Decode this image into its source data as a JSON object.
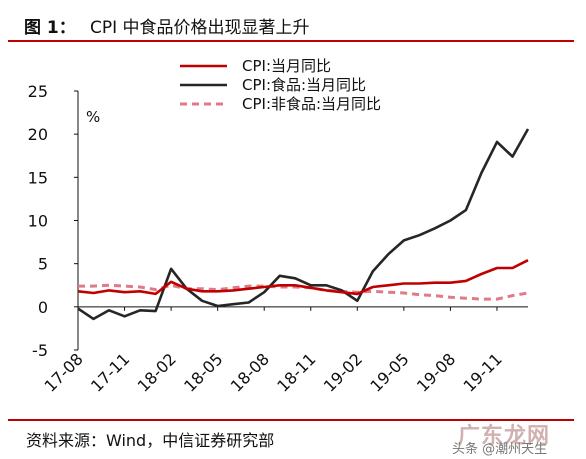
{
  "figure": {
    "number": "图 1：",
    "title": "CPI 中食品价格出现显著上升",
    "source": "资料来源：Wind，中信证券研究部"
  },
  "watermark": {
    "main": "广东龙网",
    "sub": "头条 @潮州天生"
  },
  "colors": {
    "accent_rule": "#c00000",
    "cpi": "#c00000",
    "food": "#262626",
    "nonfood": "#e07a86"
  },
  "chart_data": {
    "type": "line",
    "unit_label": "%",
    "ylim": [
      -5,
      25
    ],
    "yticks": [
      -5,
      0,
      5,
      10,
      15,
      20,
      25
    ],
    "x": [
      "17-08",
      "17-09",
      "17-10",
      "17-11",
      "17-12",
      "18-01",
      "18-02",
      "18-03",
      "18-04",
      "18-05",
      "18-06",
      "18-07",
      "18-08",
      "18-09",
      "18-10",
      "18-11",
      "18-12",
      "19-01",
      "19-02",
      "19-03",
      "19-04",
      "19-05",
      "19-06",
      "19-07",
      "19-08",
      "19-09",
      "19-10",
      "19-11",
      "19-12",
      "20-01"
    ],
    "xtick_labels": [
      "17-08",
      "17-11",
      "18-02",
      "18-05",
      "18-08",
      "18-11",
      "19-02",
      "19-05",
      "19-08",
      "19-11"
    ],
    "legend_position": "top-center",
    "grid": false,
    "series": [
      {
        "name": "CPI:当月同比",
        "color": "#c00000",
        "dash": "solid",
        "values": [
          1.8,
          1.6,
          1.9,
          1.7,
          1.8,
          1.5,
          2.9,
          2.1,
          1.8,
          1.8,
          1.9,
          2.1,
          2.3,
          2.5,
          2.5,
          2.2,
          1.9,
          1.7,
          1.5,
          2.3,
          2.5,
          2.7,
          2.7,
          2.8,
          2.8,
          3.0,
          3.8,
          4.5,
          4.5,
          5.4
        ]
      },
      {
        "name": "CPI:食品:当月同比",
        "color": "#262626",
        "dash": "solid",
        "values": [
          -0.2,
          -1.4,
          -0.4,
          -1.1,
          -0.4,
          -0.5,
          4.4,
          2.1,
          0.7,
          0.1,
          0.3,
          0.5,
          1.7,
          3.6,
          3.3,
          2.5,
          2.5,
          1.9,
          0.7,
          4.1,
          6.1,
          7.7,
          8.3,
          9.1,
          10.0,
          11.2,
          15.5,
          19.1,
          17.4,
          20.6
        ]
      },
      {
        "name": "CPI:非食品:当月同比",
        "color": "#e07a86",
        "dash": "dashed",
        "values": [
          2.4,
          2.4,
          2.5,
          2.4,
          2.3,
          2.0,
          2.5,
          2.1,
          2.1,
          2.0,
          2.2,
          2.4,
          2.4,
          2.3,
          2.3,
          2.2,
          1.9,
          1.8,
          1.7,
          1.8,
          1.7,
          1.6,
          1.4,
          1.3,
          1.1,
          1.0,
          0.9,
          0.9,
          1.3,
          1.6
        ]
      }
    ]
  }
}
